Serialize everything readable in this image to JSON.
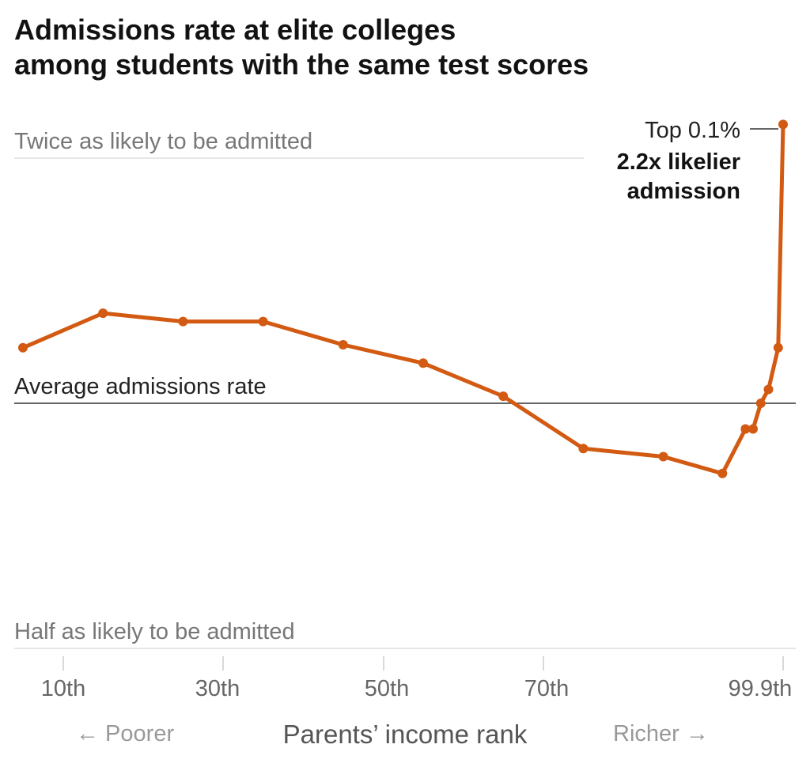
{
  "title": {
    "line1": "Admissions rate at elite colleges",
    "line2": "among students with the same test scores"
  },
  "chart_data": {
    "type": "line",
    "title": "Admissions rate at elite colleges among students with the same test scores",
    "xlabel": "Parents’ income rank",
    "x_direction_left": "← Poorer",
    "x_direction_right": "Richer →",
    "x_ticks": [
      "10th",
      "30th",
      "50th",
      "70th",
      "99.9th"
    ],
    "y_reference_lines": [
      {
        "label": "Twice as likely to be admitted",
        "value": 2.0
      },
      {
        "label": "Average admissions rate",
        "value": 1.0
      },
      {
        "label": "Half as likely to be admitted",
        "value": 0.5
      }
    ],
    "y_scale": "log",
    "line_color": "#d25a12",
    "series": [
      {
        "x": [
          "5",
          "15",
          "25",
          "35",
          "45",
          "55",
          "65",
          "75",
          "85",
          "92.5",
          "95.5",
          "96.5",
          "97.5",
          "98.5",
          "99.5",
          "99.9"
        ],
        "values": [
          1.17,
          1.29,
          1.26,
          1.26,
          1.18,
          1.12,
          1.02,
          0.88,
          0.86,
          0.82,
          0.93,
          0.93,
          1.0,
          1.04,
          1.17,
          2.2
        ]
      }
    ],
    "annotation": {
      "label": "Top 0.1%",
      "value_text": "2.2x likelier",
      "value_text2": "admission"
    }
  }
}
